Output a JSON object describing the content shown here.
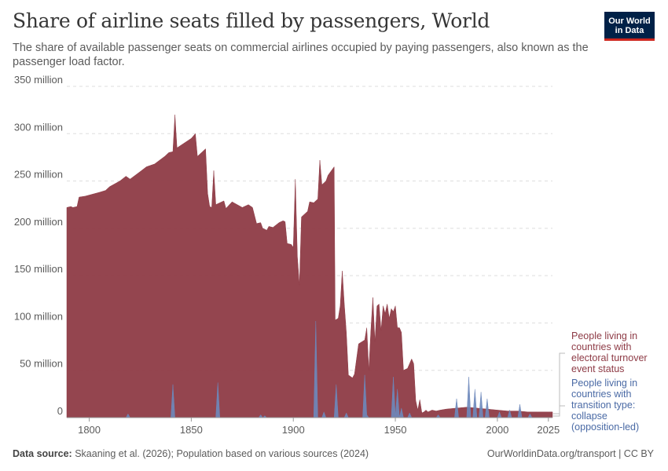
{
  "header": {
    "title": "Share of airline seats filled by passengers, World",
    "subtitle": "The share of available passenger seats on commercial airlines occupied by paying passengers, also known as the passenger load factor."
  },
  "logo": {
    "line1": "Our World",
    "line2": "in Data"
  },
  "footer": {
    "source_label": "Data source:",
    "source_text": " Skaaning et al. (2026); Population based on various sources (2024)",
    "right_text": "OurWorldinData.org/transport | CC BY"
  },
  "colors": {
    "series1": "#8e3b46",
    "series2": "#6d88bb",
    "grid": "#dddddd",
    "text": "#5b5b5b"
  },
  "chart_data": {
    "type": "area",
    "xlim": [
      1789,
      2027
    ],
    "ylim": [
      0,
      350000000
    ],
    "x_ticks": [
      {
        "value": 1800,
        "label": "1800"
      },
      {
        "value": 1850,
        "label": "1850"
      },
      {
        "value": 1900,
        "label": "1900"
      },
      {
        "value": 1950,
        "label": "1950"
      },
      {
        "value": 2000,
        "label": "2000"
      },
      {
        "value": 2025,
        "label": "2025"
      }
    ],
    "y_ticks": [
      {
        "value": 0,
        "label": "0"
      },
      {
        "value": 50000000,
        "label": "50 million"
      },
      {
        "value": 100000000,
        "label": "100 million"
      },
      {
        "value": 150000000,
        "label": "150 million"
      },
      {
        "value": 200000000,
        "label": "200 million"
      },
      {
        "value": 250000000,
        "label": "250 million"
      },
      {
        "value": 300000000,
        "label": "300 million"
      },
      {
        "value": 350000000,
        "label": "350 million"
      }
    ],
    "grid": true,
    "series": [
      {
        "name": "People living in\ncountries with\nelectoral turnover\nevent status",
        "color": "#8e3b46",
        "points": [
          [
            1789,
            222000000
          ],
          [
            1791,
            223000000
          ],
          [
            1792,
            222000000
          ],
          [
            1794,
            223000000
          ],
          [
            1795,
            233000000
          ],
          [
            1798,
            234000000
          ],
          [
            1805,
            238000000
          ],
          [
            1808,
            240000000
          ],
          [
            1810,
            244000000
          ],
          [
            1815,
            250000000
          ],
          [
            1818,
            255000000
          ],
          [
            1820,
            252000000
          ],
          [
            1825,
            260000000
          ],
          [
            1828,
            265000000
          ],
          [
            1832,
            268000000
          ],
          [
            1837,
            276000000
          ],
          [
            1839,
            280000000
          ],
          [
            1841,
            281000000
          ],
          [
            1842,
            320000000
          ],
          [
            1843,
            285000000
          ],
          [
            1850,
            295000000
          ],
          [
            1852,
            300000000
          ],
          [
            1853,
            276000000
          ],
          [
            1857,
            284000000
          ],
          [
            1858,
            237000000
          ],
          [
            1859,
            223000000
          ],
          [
            1860,
            222000000
          ],
          [
            1861,
            261000000
          ],
          [
            1862,
            225000000
          ],
          [
            1866,
            229000000
          ],
          [
            1867,
            221000000
          ],
          [
            1870,
            228000000
          ],
          [
            1875,
            222000000
          ],
          [
            1878,
            225000000
          ],
          [
            1880,
            222000000
          ],
          [
            1882,
            205000000
          ],
          [
            1884,
            206000000
          ],
          [
            1885,
            200000000
          ],
          [
            1887,
            198000000
          ],
          [
            1888,
            202000000
          ],
          [
            1890,
            201000000
          ],
          [
            1893,
            206000000
          ],
          [
            1895,
            208000000
          ],
          [
            1896,
            207000000
          ],
          [
            1897,
            184000000
          ],
          [
            1899,
            183000000
          ],
          [
            1900,
            180000000
          ],
          [
            1901,
            252000000
          ],
          [
            1902,
            170000000
          ],
          [
            1903,
            140000000
          ],
          [
            1904,
            212000000
          ],
          [
            1907,
            218000000
          ],
          [
            1908,
            228000000
          ],
          [
            1910,
            227000000
          ],
          [
            1912,
            231000000
          ],
          [
            1913,
            272000000
          ],
          [
            1914,
            246000000
          ],
          [
            1916,
            250000000
          ],
          [
            1917,
            256000000
          ],
          [
            1920,
            265000000
          ],
          [
            1920.5,
            103000000
          ],
          [
            1922,
            105000000
          ],
          [
            1923,
            118000000
          ],
          [
            1924,
            155000000
          ],
          [
            1925,
            120000000
          ],
          [
            1926,
            90000000
          ],
          [
            1927,
            45000000
          ],
          [
            1929,
            42000000
          ],
          [
            1930,
            46000000
          ],
          [
            1932,
            78000000
          ],
          [
            1935,
            82000000
          ],
          [
            1936,
            95000000
          ],
          [
            1937,
            50000000
          ],
          [
            1938,
            92000000
          ],
          [
            1939,
            127000000
          ],
          [
            1940,
            80000000
          ],
          [
            1941,
            118000000
          ],
          [
            1942,
            120000000
          ],
          [
            1943,
            92000000
          ],
          [
            1944,
            118000000
          ],
          [
            1945,
            110000000
          ],
          [
            1946,
            120000000
          ],
          [
            1947,
            105000000
          ],
          [
            1948,
            115000000
          ],
          [
            1949,
            112000000
          ],
          [
            1950,
            118000000
          ],
          [
            1951,
            95000000
          ],
          [
            1952,
            95000000
          ],
          [
            1953,
            90000000
          ],
          [
            1954,
            50000000
          ],
          [
            1956,
            52000000
          ],
          [
            1958,
            62000000
          ],
          [
            1959,
            57000000
          ],
          [
            1960,
            18000000
          ],
          [
            1961,
            8000000
          ],
          [
            1962,
            19000000
          ],
          [
            1963,
            5000000
          ],
          [
            1964,
            6000000
          ],
          [
            1965,
            8000000
          ],
          [
            1966,
            6000000
          ],
          [
            1967,
            7000000
          ],
          [
            1968,
            8000000
          ],
          [
            1970,
            7000000
          ],
          [
            1972,
            8000000
          ],
          [
            1975,
            9000000
          ],
          [
            1980,
            10000000
          ],
          [
            1985,
            11000000
          ],
          [
            1990,
            10000000
          ],
          [
            1995,
            9000000
          ],
          [
            2000,
            8000000
          ],
          [
            2005,
            7000000
          ],
          [
            2010,
            7000000
          ],
          [
            2015,
            6000000
          ],
          [
            2020,
            6000000
          ],
          [
            2025,
            6000000
          ],
          [
            2027,
            6000000
          ]
        ]
      },
      {
        "name": "People living in\ncountries with\ntransition type:\ncollapse\n(opposition-led)",
        "color": "#6d88bb",
        "points": [
          [
            1789,
            0
          ],
          [
            1818,
            0
          ],
          [
            1819,
            4000000
          ],
          [
            1820,
            0
          ],
          [
            1840,
            0
          ],
          [
            1841,
            35000000
          ],
          [
            1842,
            0
          ],
          [
            1862,
            0
          ],
          [
            1863,
            37000000
          ],
          [
            1864,
            0
          ],
          [
            1883,
            0
          ],
          [
            1884,
            3000000
          ],
          [
            1885,
            0
          ],
          [
            1886,
            2000000
          ],
          [
            1887,
            0
          ],
          [
            1910,
            0
          ],
          [
            1911,
            102000000
          ],
          [
            1912,
            0
          ],
          [
            1914,
            0
          ],
          [
            1915,
            6000000
          ],
          [
            1916,
            0
          ],
          [
            1920,
            0
          ],
          [
            1921,
            35000000
          ],
          [
            1922,
            0
          ],
          [
            1925,
            0
          ],
          [
            1926,
            5000000
          ],
          [
            1927,
            0
          ],
          [
            1934,
            0
          ],
          [
            1935,
            45000000
          ],
          [
            1936,
            3000000
          ],
          [
            1937,
            0
          ],
          [
            1948,
            0
          ],
          [
            1949,
            43000000
          ],
          [
            1950,
            2000000
          ],
          [
            1951,
            30000000
          ],
          [
            1952,
            0
          ],
          [
            1953,
            10000000
          ],
          [
            1954,
            0
          ],
          [
            1956,
            0
          ],
          [
            1957,
            5000000
          ],
          [
            1958,
            0
          ],
          [
            1970,
            0
          ],
          [
            1971,
            3000000
          ],
          [
            1972,
            0
          ],
          [
            1979,
            0
          ],
          [
            1980,
            20000000
          ],
          [
            1981,
            0
          ],
          [
            1985,
            0
          ],
          [
            1986,
            43000000
          ],
          [
            1987,
            0
          ],
          [
            1988,
            0
          ],
          [
            1989,
            30000000
          ],
          [
            1990,
            0
          ],
          [
            1991,
            0
          ],
          [
            1992,
            27000000
          ],
          [
            1993,
            0
          ],
          [
            1994,
            0
          ],
          [
            1995,
            20000000
          ],
          [
            1996,
            0
          ],
          [
            2000,
            0
          ],
          [
            2001,
            6000000
          ],
          [
            2002,
            0
          ],
          [
            2005,
            0
          ],
          [
            2006,
            8000000
          ],
          [
            2007,
            0
          ],
          [
            2010,
            0
          ],
          [
            2011,
            14000000
          ],
          [
            2012,
            0
          ],
          [
            2015,
            0
          ],
          [
            2016,
            4000000
          ],
          [
            2017,
            0
          ],
          [
            2027,
            0
          ]
        ]
      }
    ]
  }
}
